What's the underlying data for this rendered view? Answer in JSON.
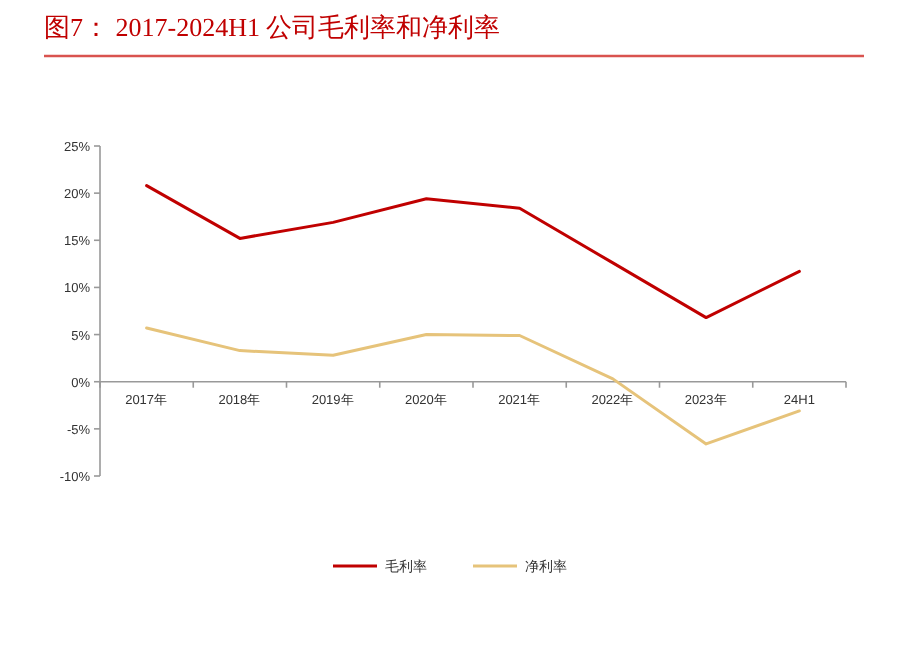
{
  "chart_data": {
    "type": "line",
    "title": "图7：  2017-2024H1 公司毛利率和净利率",
    "categories": [
      "2017年",
      "2018年",
      "2019年",
      "2020年",
      "2021年",
      "2022年",
      "2023年",
      "24H1"
    ],
    "series": [
      {
        "name": "毛利率",
        "color": "#c00000",
        "values": [
          20.8,
          15.2,
          16.9,
          19.4,
          18.4,
          12.6,
          6.8,
          11.7
        ]
      },
      {
        "name": "净利率",
        "color": "#e6c37a",
        "values": [
          5.7,
          3.3,
          2.8,
          5.0,
          4.9,
          0.3,
          -6.6,
          -3.1
        ]
      }
    ],
    "ylim": [
      -10,
      25
    ],
    "yticks": [
      {
        "value": -10,
        "label": "-10%"
      },
      {
        "value": -5,
        "label": "-5%"
      },
      {
        "value": 0,
        "label": "0%"
      },
      {
        "value": 5,
        "label": "5%"
      },
      {
        "value": 10,
        "label": "10%"
      },
      {
        "value": 15,
        "label": "15%"
      },
      {
        "value": 20,
        "label": "20%"
      },
      {
        "value": 25,
        "label": "25%"
      }
    ],
    "grid": false,
    "legend": "bottom",
    "marker": "none",
    "line_style": "solid"
  }
}
